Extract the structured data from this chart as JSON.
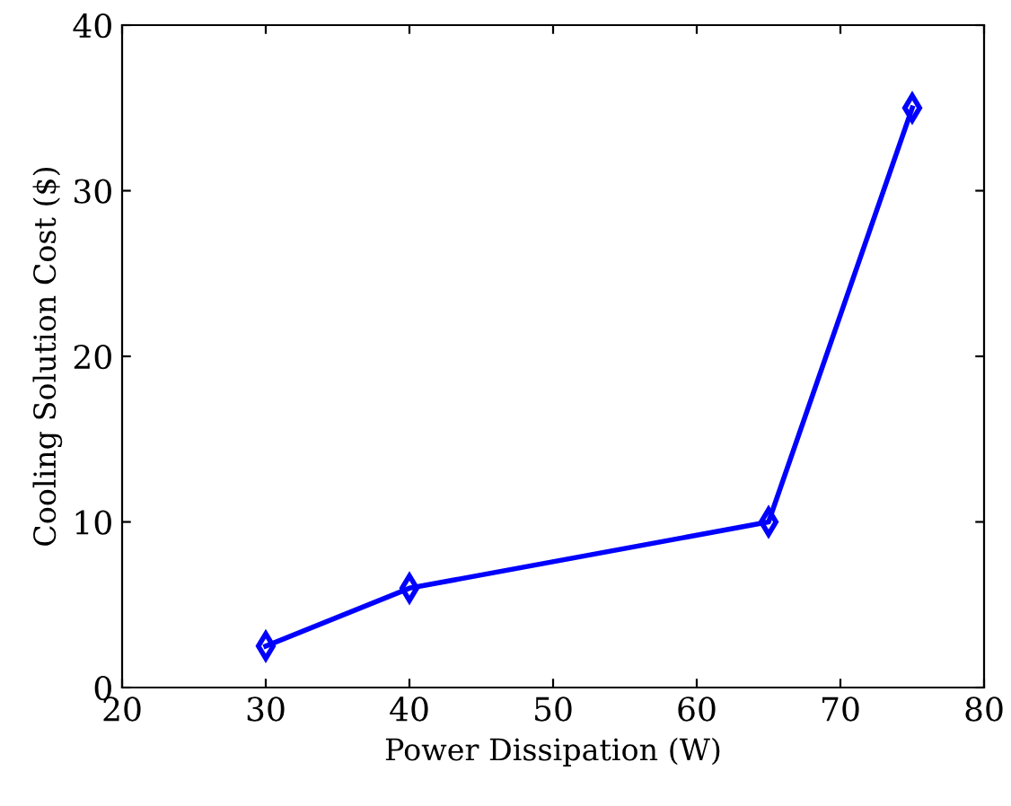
{
  "chart_data": {
    "type": "line",
    "xlabel": "Power Dissipation (W)",
    "ylabel": "Cooling Solution Cost ($)",
    "x": [
      30,
      40,
      65,
      75
    ],
    "series": [
      {
        "color": "#0000ff",
        "values": [
          2.5,
          6,
          10,
          35
        ]
      }
    ],
    "xlim": [
      20,
      80
    ],
    "xticks": [
      20,
      30,
      40,
      50,
      60,
      70,
      80
    ],
    "ylim": [
      0,
      40
    ],
    "yticks": [
      0,
      10,
      20,
      30,
      40
    ],
    "marker": "diamond",
    "line_style": "solid",
    "grid": false,
    "legend": false
  }
}
